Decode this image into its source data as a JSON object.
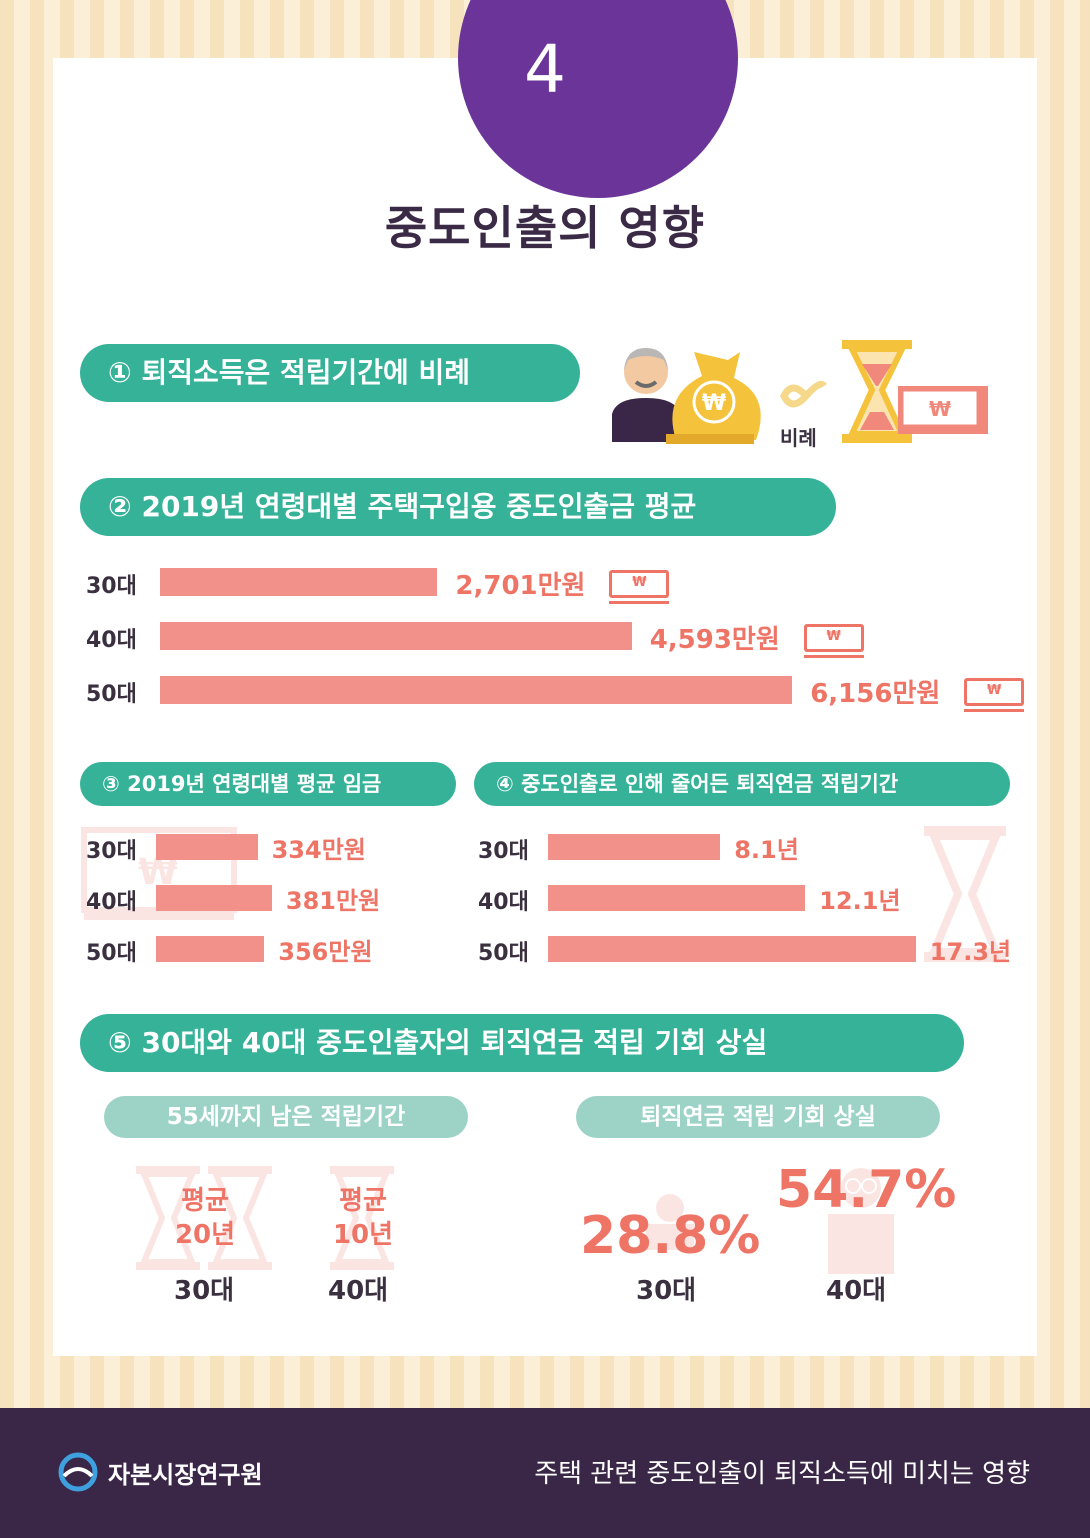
{
  "badge": "4",
  "title": "중도인출의 영향",
  "section1": {
    "label": "① 퇴직소득은 적립기간에 비례",
    "proportional_label": "비례",
    "won": "₩"
  },
  "section2": {
    "label": "② 2019년 연령대별 주택구입용 중도인출금 평균",
    "rows": [
      {
        "age": "30대",
        "text": "2,701만원"
      },
      {
        "age": "40대",
        "text": "4,593만원"
      },
      {
        "age": "50대",
        "text": "6,156만원"
      }
    ]
  },
  "section3": {
    "label": "③ 2019년 연령대별 평균 임금",
    "rows": [
      {
        "age": "30대",
        "text": "334만원"
      },
      {
        "age": "40대",
        "text": "381만원"
      },
      {
        "age": "50대",
        "text": "356만원"
      }
    ]
  },
  "section4": {
    "label": "④ 중도인출로 인해 줄어든 퇴직연금 적립기간",
    "rows": [
      {
        "age": "30대",
        "text": "8.1년"
      },
      {
        "age": "40대",
        "text": "12.1년"
      },
      {
        "age": "50대",
        "text": "17.3년"
      }
    ]
  },
  "section5": {
    "label": "⑤ 30대와 40대 중도인출자의 퇴직연금 적립 기회 상실",
    "left_title": "55세까지 남은 적립기간",
    "right_title": "퇴직연금 적립 기회 상실",
    "remaining": [
      {
        "line1": "평균",
        "line2": "20년",
        "age": "30대"
      },
      {
        "line1": "평균",
        "line2": "10년",
        "age": "40대"
      }
    ],
    "loss": [
      {
        "pct": "28.8%",
        "age": "30대"
      },
      {
        "pct": "54.7%",
        "age": "40대"
      }
    ]
  },
  "footer": {
    "org": "자본시장연구원",
    "subtitle": "주택 관련 중도인출이 퇴직소득에 미치는 영향"
  },
  "colors": {
    "bar": "#f2918a",
    "value_text": "#ee7466",
    "pill": "#35b298",
    "sub_pill": "#9dd3c7",
    "badge": "#6a3499",
    "footer": "#3a2747"
  },
  "chart_data": [
    {
      "type": "bar",
      "title": "② 2019년 연령대별 주택구입용 중도인출금 평균",
      "categories": [
        "30대",
        "40대",
        "50대"
      ],
      "values": [
        2701,
        4593,
        6156
      ],
      "unit": "만원",
      "orientation": "horizontal"
    },
    {
      "type": "bar",
      "title": "③ 2019년 연령대별 평균 임금",
      "categories": [
        "30대",
        "40대",
        "50대"
      ],
      "values": [
        334,
        381,
        356
      ],
      "unit": "만원",
      "orientation": "horizontal"
    },
    {
      "type": "bar",
      "title": "④ 중도인출로 인해 줄어든 퇴직연금 적립기간",
      "categories": [
        "30대",
        "40대",
        "50대"
      ],
      "values": [
        8.1,
        12.1,
        17.3
      ],
      "unit": "년",
      "orientation": "horizontal"
    },
    {
      "type": "table",
      "title": "⑤ 30대와 40대 중도인출자의 퇴직연금 적립 기회 상실",
      "categories": [
        "30대",
        "40대"
      ],
      "series": [
        {
          "name": "55세까지 남은 적립기간",
          "values": [
            20,
            10
          ]
        },
        {
          "name": "퇴직연금 적립 기회 상실",
          "values": [
            28.8,
            54.7
          ]
        }
      ]
    }
  ]
}
